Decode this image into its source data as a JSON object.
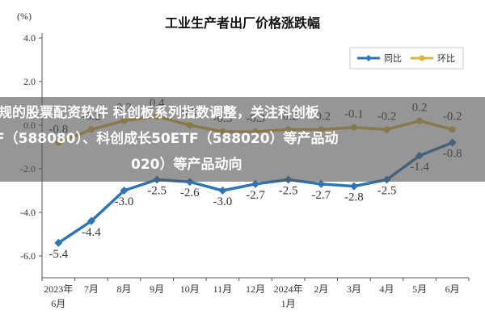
{
  "chart_data": {
    "type": "line",
    "title": "工业生产者出厂价格涨跌幅",
    "unit_label": "(%)",
    "categories": [
      [
        "2023年",
        "6月"
      ],
      [
        "7月"
      ],
      [
        "8月"
      ],
      [
        "9月"
      ],
      [
        "10月"
      ],
      [
        "11月"
      ],
      [
        "12月"
      ],
      [
        "2024年",
        "1月"
      ],
      [
        "2月"
      ],
      [
        "3月"
      ],
      [
        "4月"
      ],
      [
        "5月"
      ],
      [
        "6月"
      ]
    ],
    "yticks": [
      "4.0",
      "2.0",
      "0.0",
      "-2.0",
      "-4.0",
      "-6.0"
    ],
    "ylim": [
      -7,
      4
    ],
    "series": [
      {
        "name": "同比",
        "color": "#2E75B6",
        "values": [
          -5.4,
          -4.4,
          -3.0,
          -2.5,
          -2.6,
          -3.0,
          -2.7,
          -2.5,
          -2.7,
          -2.8,
          -2.5,
          -1.4,
          -0.8
        ],
        "labels": [
          "-5.4",
          "-4.4",
          "-3.0",
          "-2.5",
          "-2.6",
          "-3.0",
          "-2.7",
          "-2.5",
          "-2.7",
          "-2.8",
          "-2.5",
          "-1.4",
          "-0.8"
        ]
      },
      {
        "name": "环比",
        "color": "#D9B43F",
        "values": [
          -0.8,
          -0.2,
          0.2,
          0.4,
          0.0,
          -0.3,
          -0.3,
          -0.2,
          -0.2,
          -0.1,
          -0.2,
          0.2,
          -0.2
        ],
        "labels": [
          "-0.8",
          "-0.2",
          "0.2",
          "0.4",
          "0.0",
          "-0.3",
          "-0.3",
          "-0.2",
          "-0.2",
          "-0.1",
          "-0.2",
          "0.2",
          "-0.2"
        ]
      }
    ],
    "legend_position": "top-right",
    "grid": false
  },
  "overlay": {
    "line1": "规的股票配资软件 科创板系列指数调整，关注科创板",
    "line2": "F（588080）、科创成长50ETF（588020）等产品动",
    "line3": "020）等产品动向"
  }
}
